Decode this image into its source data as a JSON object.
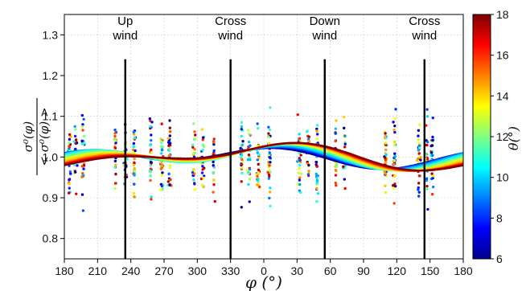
{
  "chart_data": {
    "type": "scatter",
    "xlabel": "φ (°)",
    "ylabel_numerator": "σ⁰(φ)",
    "ylabel_denominator": "< σ⁰(φ) >",
    "xtick_labels": [
      "180",
      "210",
      "240",
      "270",
      "300",
      "330",
      "0",
      "30",
      "60",
      "90",
      "120",
      "150",
      "180"
    ],
    "ylim": [
      0.75,
      1.35
    ],
    "yticks": [
      "0.8",
      "0.9",
      "1.0",
      "1.1",
      "1.2",
      "1.3"
    ],
    "grid": true,
    "colorbar": {
      "label": "θ(°)",
      "range": [
        6,
        18
      ],
      "ticks": [
        "6",
        "8",
        "10",
        "12",
        "14",
        "16",
        "18"
      ],
      "colormap": "jet"
    },
    "wind_markers": [
      {
        "x": 235,
        "line1": "Up",
        "line2": "wind"
      },
      {
        "x": 330,
        "line1": "Cross",
        "line2": "wind"
      },
      {
        "x": 55,
        "line1": "Down",
        "line2": "wind"
      },
      {
        "x": 145,
        "line1": "Cross",
        "line2": "wind"
      }
    ],
    "scatter_columns_x": [
      185,
      190,
      197,
      226,
      235,
      243,
      258,
      268,
      275,
      297,
      305,
      315,
      340,
      347,
      355,
      5,
      32,
      40,
      48,
      65,
      73,
      110,
      118,
      140,
      147,
      152
    ],
    "fit_curves": [
      {
        "theta": 6,
        "mean": 1.0,
        "a1": 0.012,
        "p1": 300,
        "a2": 0.018,
        "p2": 15
      },
      {
        "theta": 7,
        "mean": 1.0,
        "a1": 0.011,
        "p1": 305,
        "a2": 0.019,
        "p2": 17
      },
      {
        "theta": 8,
        "mean": 1.0,
        "a1": 0.01,
        "p1": 310,
        "a2": 0.02,
        "p2": 18
      },
      {
        "theta": 9,
        "mean": 1.0,
        "a1": 0.01,
        "p1": 315,
        "a2": 0.021,
        "p2": 20
      },
      {
        "theta": 10,
        "mean": 1.0,
        "a1": 0.011,
        "p1": 320,
        "a2": 0.022,
        "p2": 22
      },
      {
        "theta": 11,
        "mean": 1.0,
        "a1": 0.012,
        "p1": 330,
        "a2": 0.023,
        "p2": 25
      },
      {
        "theta": 12,
        "mean": 1.0,
        "a1": 0.014,
        "p1": 335,
        "a2": 0.022,
        "p2": 27
      },
      {
        "theta": 13,
        "mean": 1.0,
        "a1": 0.016,
        "p1": 340,
        "a2": 0.021,
        "p2": 30
      },
      {
        "theta": 14,
        "mean": 1.0,
        "a1": 0.018,
        "p1": 345,
        "a2": 0.02,
        "p2": 32
      },
      {
        "theta": 15,
        "mean": 1.0,
        "a1": 0.02,
        "p1": 350,
        "a2": 0.019,
        "p2": 35
      },
      {
        "theta": 16,
        "mean": 1.0,
        "a1": 0.021,
        "p1": 353,
        "a2": 0.018,
        "p2": 37
      },
      {
        "theta": 17,
        "mean": 1.0,
        "a1": 0.022,
        "p1": 356,
        "a2": 0.017,
        "p2": 38
      },
      {
        "theta": 18,
        "mean": 1.0,
        "a1": 0.023,
        "p1": 358,
        "a2": 0.016,
        "p2": 40
      }
    ]
  }
}
